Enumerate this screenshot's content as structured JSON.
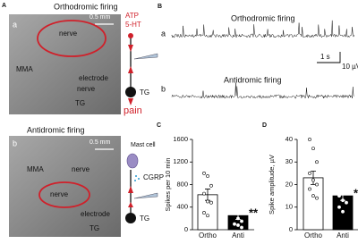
{
  "figure": {
    "panel_A": {
      "label": "A",
      "a": {
        "title": "Orthodromic firing",
        "letter": "a",
        "scale": "0.5 mm",
        "nerve_top": "nerve",
        "mma": "MMA",
        "electrode": "electrode",
        "nerve": "nerve",
        "tg": "TG",
        "atp": "ATP",
        "ht": "5-HT",
        "schematic_tg": "TG",
        "pain": "pain"
      },
      "b": {
        "title": "Antidromic firing",
        "letter": "b",
        "scale": "0.5 mm",
        "mma": "MMA",
        "nerve_top": "nerve",
        "nerve": "nerve",
        "electrode": "electrode",
        "tg": "TG",
        "mast_cell": "Mast cell",
        "cgrp": "CGRP",
        "schematic_tg": "TG"
      }
    },
    "panel_B": {
      "label": "B",
      "a": {
        "letter": "a",
        "title": "Orthodromic firing"
      },
      "b": {
        "letter": "b",
        "title": "Antidromic firing"
      },
      "time_scale": "1 s",
      "voltage_scale": "10 µV"
    }
  },
  "chart_data": [
    {
      "type": "bar",
      "label": "C",
      "ylabel": "Spikes per 10 min",
      "categories": [
        "Ortho",
        "Anti"
      ],
      "values": [
        620,
        250
      ],
      "errors": [
        100,
        70
      ],
      "points": [
        [
          1000,
          950,
          780,
          640,
          500,
          480,
          300,
          250
        ],
        [
          550,
          450,
          350,
          300,
          200,
          150,
          100,
          80,
          40
        ]
      ],
      "colors": [
        "#ffffff",
        "#000000"
      ],
      "ylim": [
        0,
        1600
      ],
      "yticks": [
        0,
        400,
        800,
        1200,
        1600
      ],
      "annotation": "**"
    },
    {
      "type": "bar",
      "label": "D",
      "ylabel": "Spike amplitude, µV",
      "categories": [
        "Ortho",
        "Anti"
      ],
      "values": [
        23,
        15
      ],
      "errors": [
        3,
        2
      ],
      "points": [
        [
          40,
          36,
          30,
          25,
          22,
          20,
          18,
          15,
          14
        ],
        [
          30,
          27,
          23,
          21,
          19,
          17,
          15,
          13,
          12,
          10,
          8
        ]
      ],
      "colors": [
        "#ffffff",
        "#000000"
      ],
      "ylim": [
        0,
        40
      ],
      "yticks": [
        0,
        10,
        20,
        30,
        40
      ],
      "annotation": "**"
    }
  ]
}
